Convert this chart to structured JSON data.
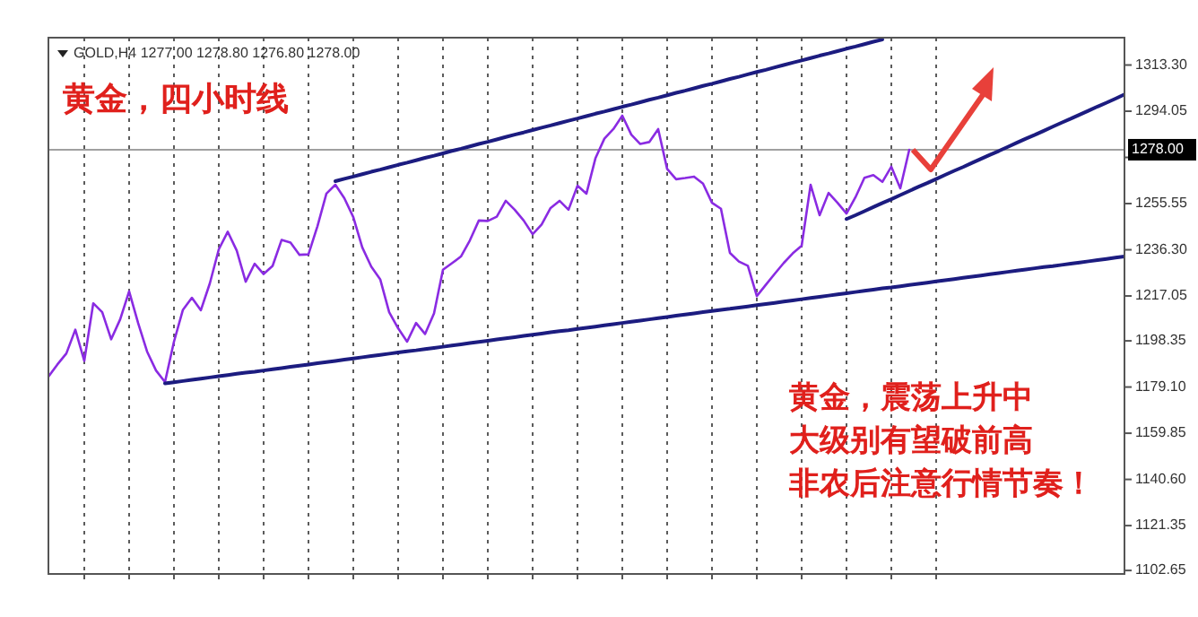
{
  "chart_data": {
    "type": "line",
    "title": "黄金，四小时线",
    "subtitle": "GOLD,H4  1277.00 1278.80 1276.80 1278.00",
    "annotations": [
      "黄金，震荡上升中",
      "大级别有望破前高",
      "非农后注意行情节奏！"
    ],
    "categories": [
      null,
      null,
      null,
      null,
      null,
      null,
      null,
      null,
      null,
      null,
      null,
      null,
      null,
      null,
      null,
      null,
      null,
      null,
      null,
      null,
      null,
      null,
      null,
      null,
      null,
      null,
      null,
      null,
      null,
      null,
      null,
      null,
      null,
      null,
      null,
      null,
      null,
      null,
      null,
      null,
      null,
      null,
      null,
      null,
      null,
      null,
      null,
      null,
      null,
      null,
      null,
      null,
      null,
      null,
      null,
      null,
      null,
      null,
      null,
      null,
      null,
      null,
      null,
      null,
      null,
      null,
      null,
      null,
      null,
      null,
      null,
      null,
      null,
      null,
      null,
      null,
      null,
      null,
      null,
      null,
      null,
      null,
      null,
      null,
      null,
      null,
      null,
      null,
      null,
      null,
      null,
      null,
      null,
      null,
      null,
      null,
      null,
      null,
      null,
      null,
      null,
      null,
      null,
      null,
      null,
      null,
      null,
      null,
      null,
      null,
      null,
      null,
      null,
      null,
      null,
      null,
      null,
      null,
      null,
      null,
      null
    ],
    "ylim": [
      1101.2,
      1324.7
    ],
    "yticks": [
      {
        "value": 1313.3,
        "label": "1313.30"
      },
      1294.05,
      {
        "value": 1274.8,
        "label": null
      },
      1255.55,
      {
        "value": 1236.3,
        "label": "1236.30"
      },
      1217.05,
      1198.35,
      {
        "value": 1179.1,
        "label": "1179.10"
      },
      1159.85,
      {
        "value": 1140.6,
        "label": "1140.60"
      },
      1121.35,
      1102.65
    ],
    "tick_labels": "y",
    "grid": "x",
    "marker": "none",
    "line_style": "solid",
    "ref_lines": [
      {
        "axis": "y",
        "value": 1278.0,
        "label": "1278.00",
        "color": "#a0a0a0"
      }
    ],
    "series": [
      {
        "color": "#8a2be2",
        "values": [
          1183.4,
          1188.5,
          1193.1,
          1203.0,
          1190.0,
          1214.0,
          1210.3,
          1199.0,
          1207.3,
          1219.0,
          1205.8,
          1193.9,
          1186.0,
          1181.2,
          1198.0,
          1211.3,
          1216.3,
          1211.1,
          1222.3,
          1236.5,
          1243.8,
          1236.0,
          1223.0,
          1230.5,
          1226.2,
          1229.6,
          1240.4,
          1239.3,
          1234.2,
          1234.4,
          1246.1,
          1259.7,
          1263.4,
          1257.8,
          1249.9,
          1237.3,
          1229.3,
          1224.0,
          1210.3,
          1203.6,
          1198.0,
          1205.8,
          1201.2,
          1209.8,
          1228.0,
          1230.7,
          1233.5,
          1240.2,
          1248.5,
          1248.3,
          1250.1,
          1256.7,
          1253.0,
          1248.5,
          1242.8,
          1246.8,
          1253.7,
          1256.7,
          1253.0,
          1263.0,
          1259.7,
          1274.4,
          1282.6,
          1286.6,
          1292.2,
          1284.3,
          1280.4,
          1281.2,
          1286.6,
          1270.0,
          1265.7,
          1266.2,
          1266.8,
          1263.9,
          1255.9,
          1253.4,
          1235.0,
          1231.4,
          1229.6,
          1217.0,
          1221.7,
          1226.3,
          1230.8,
          1234.8,
          1238.0,
          1263.4,
          1250.7,
          1260.0,
          1255.9,
          1251.4,
          1258.2,
          1266.3,
          1267.4,
          1264.6,
          1270.9,
          1261.9,
          1278.0,
          null,
          null,
          null,
          null,
          null,
          null,
          null,
          null,
          null,
          null,
          null,
          null,
          null,
          null,
          null,
          null,
          null,
          null,
          null,
          null,
          null,
          null,
          null,
          null
        ]
      },
      {
        "color": "#1c1c80",
        "values": [
          null,
          null,
          null,
          null,
          null,
          null,
          null,
          null,
          null,
          null,
          null,
          null,
          null,
          null,
          null,
          null,
          null,
          null,
          null,
          null,
          null,
          null,
          null,
          null,
          null,
          null,
          null,
          null,
          null,
          null,
          null,
          null,
          1264.9,
          1265.9,
          1266.8,
          1267.8,
          1268.8,
          1269.7,
          1270.7,
          1271.7,
          1272.6,
          1273.6,
          1274.6,
          1275.5,
          1276.5,
          1277.5,
          1278.4,
          1279.4,
          1280.4,
          1281.3,
          1282.3,
          1283.3,
          1284.3,
          1285.2,
          1286.2,
          1287.2,
          1288.1,
          1289.1,
          1290.1,
          1291.0,
          1292.0,
          1293.0,
          1293.9,
          1294.9,
          1295.9,
          1296.8,
          1297.8,
          1298.8,
          1299.7,
          1300.7,
          1301.7,
          1302.6,
          1303.6,
          1304.6,
          1305.5,
          1306.5,
          1307.5,
          1308.4,
          1309.4,
          1310.4,
          1311.3,
          1312.3,
          1313.3,
          1314.3,
          1315.2,
          1316.2,
          1317.2,
          1318.1,
          1319.1,
          1320.1,
          1321.0,
          1322.0,
          1323.0,
          1323.9,
          null,
          null,
          null,
          null,
          null,
          null,
          null,
          null,
          null,
          null,
          null,
          null,
          null,
          null,
          null,
          null,
          null,
          null,
          null,
          null,
          null,
          null,
          null,
          null,
          null,
          null,
          null
        ]
      },
      {
        "color": "#1c1c80",
        "values": [
          null,
          null,
          null,
          null,
          null,
          null,
          null,
          null,
          null,
          null,
          null,
          null,
          null,
          1180.6,
          1181.1,
          1181.6,
          1182.1,
          1182.6,
          1183.1,
          1183.6,
          1184.1,
          1184.6,
          1185.1,
          1185.5,
          1186.0,
          1186.5,
          1187.0,
          1187.5,
          1188.0,
          1188.5,
          1189.0,
          1189.5,
          1190.0,
          1190.5,
          1191.0,
          1191.5,
          1192.0,
          1192.5,
          1193.0,
          1193.5,
          1194.0,
          1194.4,
          1194.9,
          1195.4,
          1195.9,
          1196.4,
          1196.9,
          1197.4,
          1197.9,
          1198.4,
          1198.9,
          1199.4,
          1199.9,
          1200.4,
          1200.9,
          1201.4,
          1201.9,
          1202.4,
          1202.8,
          1203.3,
          1203.8,
          1204.3,
          1204.8,
          1205.3,
          1205.8,
          1206.3,
          1206.8,
          1207.3,
          1207.8,
          1208.3,
          1208.8,
          1209.3,
          1209.8,
          1210.3,
          1210.8,
          1211.3,
          1211.7,
          1212.2,
          1212.7,
          1213.2,
          1213.7,
          1214.2,
          1214.7,
          1215.2,
          1215.7,
          1216.2,
          1216.7,
          1217.2,
          1217.7,
          1218.2,
          1218.7,
          1219.2,
          1219.7,
          1220.2,
          1220.6,
          1221.1,
          1221.6,
          1222.1,
          1222.6,
          1223.1,
          1223.6,
          1224.1,
          1224.6,
          1225.1,
          1225.6,
          1226.1,
          1226.6,
          1227.1,
          1227.6,
          1228.1,
          1228.6,
          1229.1,
          1229.5,
          1230.0,
          1230.5,
          1231.0,
          1231.5,
          1232.0,
          1232.5,
          1233.0,
          1233.5
        ]
      },
      {
        "color": "#1c1c80",
        "values": [
          null,
          null,
          null,
          null,
          null,
          null,
          null,
          null,
          null,
          null,
          null,
          null,
          null,
          null,
          null,
          null,
          null,
          null,
          null,
          null,
          null,
          null,
          null,
          null,
          null,
          null,
          null,
          null,
          null,
          null,
          null,
          null,
          null,
          null,
          null,
          null,
          null,
          null,
          null,
          null,
          null,
          null,
          null,
          null,
          null,
          null,
          null,
          null,
          null,
          null,
          null,
          null,
          null,
          null,
          null,
          null,
          null,
          null,
          null,
          null,
          null,
          null,
          null,
          null,
          null,
          null,
          null,
          null,
          null,
          null,
          null,
          null,
          null,
          null,
          null,
          null,
          null,
          null,
          null,
          null,
          null,
          null,
          null,
          null,
          null,
          null,
          null,
          null,
          null,
          1249.1,
          1250.7,
          1252.4,
          1254.1,
          1255.8,
          1257.4,
          1259.1,
          1260.8,
          1262.5,
          1264.1,
          1265.8,
          1267.5,
          1269.2,
          1270.8,
          1272.5,
          1274.2,
          1275.9,
          1277.5,
          1279.2,
          1280.9,
          1282.6,
          1284.2,
          1285.9,
          1287.6,
          1289.3,
          1290.9,
          1292.6,
          1294.3,
          1296.0,
          1297.6,
          1299.3,
          1301.0
        ]
      }
    ]
  }
}
